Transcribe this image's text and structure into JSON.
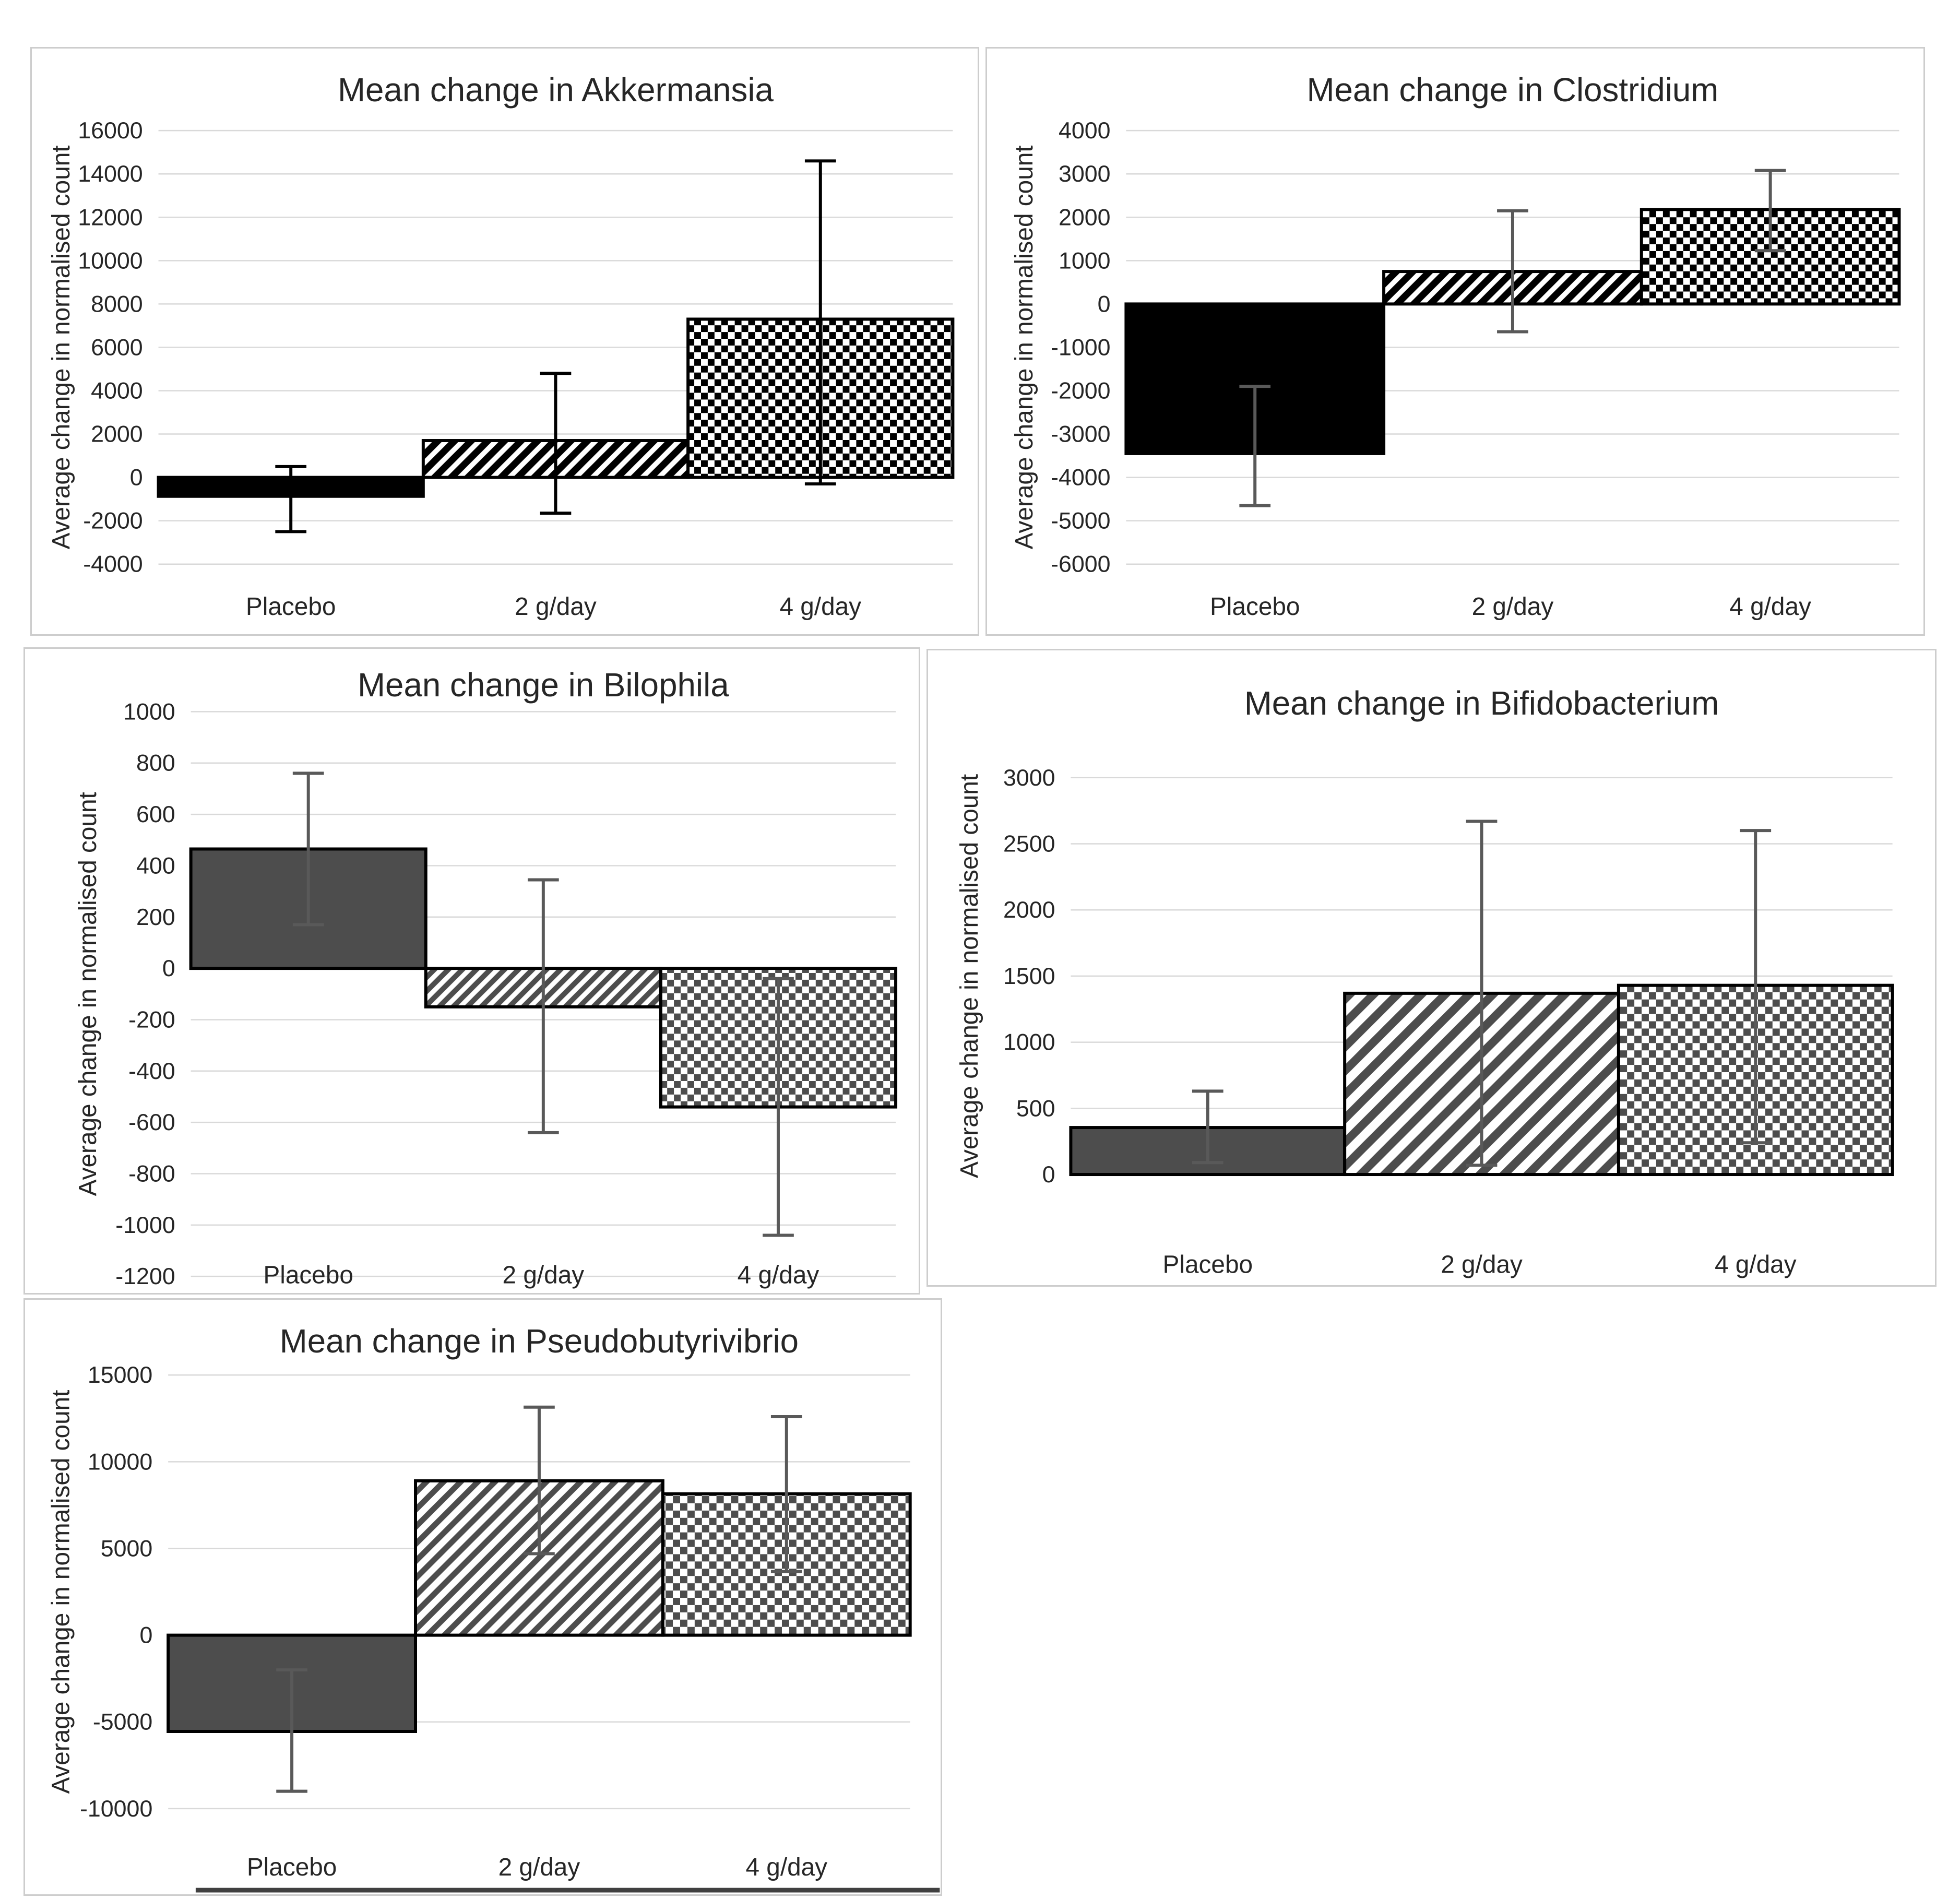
{
  "figure": {
    "background": "#ffffff",
    "panel_border_color": "#cdcdcd",
    "grid_color": "#d9d9d9",
    "axis_text_color": "#262626",
    "title_color": "#262626",
    "bar_outline_color": "#000000"
  },
  "chart_data": [
    {
      "type": "bar",
      "title": "Mean change in Akkermansia",
      "ylabel": "Average change in normalised count",
      "categories": [
        "Placebo",
        "2 g/day",
        "4 g/day"
      ],
      "values": [
        -870,
        1700,
        7300
      ],
      "error_low": [
        -2500,
        -1650,
        -300
      ],
      "error_high": [
        500,
        4800,
        14600
      ],
      "ylim": [
        -4000,
        16000
      ],
      "ytick_step": 2000,
      "grid": true,
      "legend": "none",
      "bar_styles": [
        "solid",
        "hatch",
        "checker"
      ],
      "pattern_color": "#000000",
      "error_color": "#000000"
    },
    {
      "type": "bar",
      "title": "Mean change in Clostridium",
      "ylabel": "Average change in normalised count",
      "categories": [
        "Placebo",
        "2 g/day",
        "4 g/day"
      ],
      "values": [
        -3450,
        750,
        2180
      ],
      "error_low": [
        -4650,
        -640,
        1230
      ],
      "error_high": [
        -1900,
        2150,
        3080
      ],
      "ylim": [
        -6000,
        4000
      ],
      "ytick_step": 1000,
      "grid": true,
      "legend": "none",
      "bar_styles": [
        "solid",
        "hatch",
        "checker"
      ],
      "pattern_color": "#000000",
      "error_color": "#595959"
    },
    {
      "type": "bar",
      "title": "Mean change in Bilophila",
      "ylabel": "Average change in normalised count",
      "categories": [
        "Placebo",
        "2 g/day",
        "4 g/day"
      ],
      "values": [
        465,
        -150,
        -540
      ],
      "error_low": [
        170,
        -640,
        -1040
      ],
      "error_high": [
        760,
        345,
        -40
      ],
      "ylim": [
        -1200,
        1000
      ],
      "ytick_step": 200,
      "grid": true,
      "legend": "none",
      "bar_styles": [
        "solid",
        "hatch",
        "checker"
      ],
      "pattern_color": "#4d4d4d",
      "error_color": "#595959"
    },
    {
      "type": "bar",
      "title": "Mean change in Bifidobacterium",
      "ylabel": "Average change in normalised count",
      "categories": [
        "Placebo",
        "2 g/day",
        "4 g/day"
      ],
      "values": [
        355,
        1370,
        1430
      ],
      "error_low": [
        90,
        70,
        240
      ],
      "error_high": [
        630,
        2670,
        2600
      ],
      "ylim": [
        0,
        3000
      ],
      "ytick_step": 500,
      "grid": true,
      "legend": "none",
      "bar_styles": [
        "solid",
        "hatch",
        "checker"
      ],
      "pattern_color": "#4d4d4d",
      "error_color": "#595959"
    },
    {
      "type": "bar",
      "title": "Mean change in Pseudobutyrivibrio",
      "ylabel": "Average change in normalised count",
      "categories": [
        "Placebo",
        "2 g/day",
        "4 g/day"
      ],
      "values": [
        -5550,
        8900,
        8150
      ],
      "error_low": [
        -9000,
        4700,
        3670
      ],
      "error_high": [
        -2000,
        13150,
        12600
      ],
      "ylim": [
        -10000,
        15000
      ],
      "ytick_step": 5000,
      "grid": true,
      "legend": "none",
      "bar_styles": [
        "solid",
        "hatch",
        "checker"
      ],
      "pattern_color": "#4d4d4d",
      "error_color": "#595959",
      "axis_bottom_line_color": "#404040"
    }
  ]
}
